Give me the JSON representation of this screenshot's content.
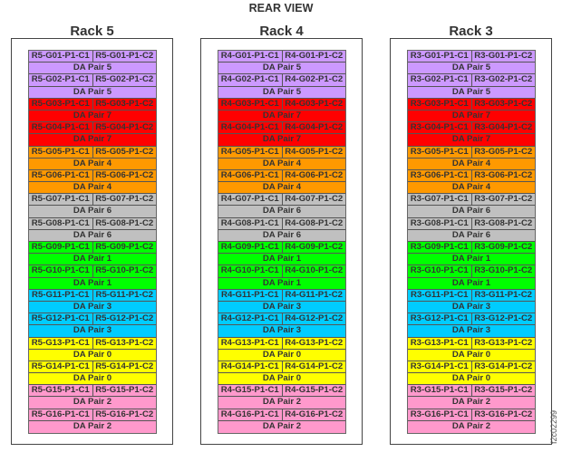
{
  "title": "REAR VIEW",
  "figure_id": "f2c02299",
  "colors": {
    "5": "#cc99ff",
    "7": "#ff0000",
    "4": "#ff9900",
    "6": "#c0c0c0",
    "1": "#00ff00",
    "3": "#00ccff",
    "0": "#ffff00",
    "2": "#ff99cc"
  },
  "racks": [
    {
      "label": "Rack 5",
      "prefix": "R5",
      "modules": []
    },
    {
      "label": "Rack 4",
      "prefix": "R4",
      "modules": []
    },
    {
      "label": "Rack 3",
      "prefix": "R3",
      "modules": []
    }
  ],
  "module_template": [
    {
      "c1": "G01-P1-C1",
      "c2": "G01-P1-C2",
      "pair": "DA Pair 5",
      "pair_id": "5"
    },
    {
      "c1": "G02-P1-C1",
      "c2": "G02-P1-C2",
      "pair": "DA Pair 5",
      "pair_id": "5"
    },
    {
      "c1": "G03-P1-C1",
      "c2": "G03-P1-C2",
      "pair": "DA Pair 7",
      "pair_id": "7"
    },
    {
      "c1": "G04-P1-C1",
      "c2": "G04-P1-C2",
      "pair": "DA Pair 7",
      "pair_id": "7"
    },
    {
      "c1": "G05-P1-C1",
      "c2": "G05-P1-C2",
      "pair": "DA Pair 4",
      "pair_id": "4"
    },
    {
      "c1": "G06-P1-C1",
      "c2": "G06-P1-C2",
      "pair": "DA Pair 4",
      "pair_id": "4"
    },
    {
      "c1": "G07-P1-C1",
      "c2": "G07-P1-C2",
      "pair": "DA Pair 6",
      "pair_id": "6"
    },
    {
      "c1": "G08-P1-C1",
      "c2": "G08-P1-C2",
      "pair": "DA Pair 6",
      "pair_id": "6"
    },
    {
      "c1": "G09-P1-C1",
      "c2": "G09-P1-C2",
      "pair": "DA Pair 1",
      "pair_id": "1"
    },
    {
      "c1": "G10-P1-C1",
      "c2": "G10-P1-C2",
      "pair": "DA Pair 1",
      "pair_id": "1"
    },
    {
      "c1": "G11-P1-C1",
      "c2": "G11-P1-C2",
      "pair": "DA Pair 3",
      "pair_id": "3"
    },
    {
      "c1": "G12-P1-C1",
      "c2": "G12-P1-C2",
      "pair": "DA Pair 3",
      "pair_id": "3"
    },
    {
      "c1": "G13-P1-C1",
      "c2": "G13-P1-C2",
      "pair": "DA Pair 0",
      "pair_id": "0"
    },
    {
      "c1": "G14-P1-C1",
      "c2": "G14-P1-C2",
      "pair": "DA Pair 0",
      "pair_id": "0"
    },
    {
      "c1": "G15-P1-C1",
      "c2": "G15-P1-C2",
      "pair": "DA Pair 2",
      "pair_id": "2"
    },
    {
      "c1": "G16-P1-C1",
      "c2": "G16-P1-C2",
      "pair": "DA Pair 2",
      "pair_id": "2"
    }
  ]
}
